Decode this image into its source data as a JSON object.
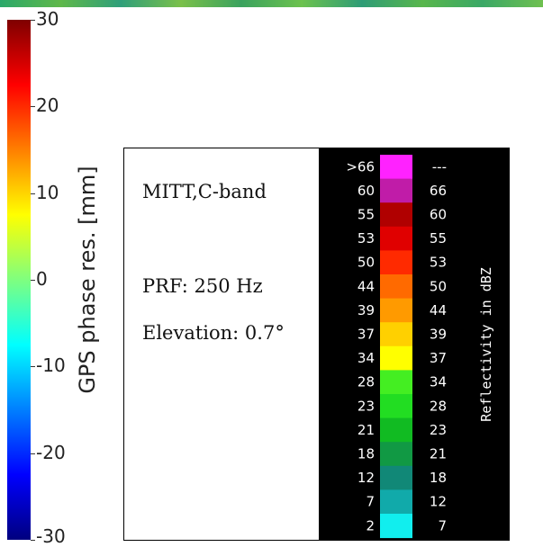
{
  "chart_data": {
    "type": "heatmap",
    "gps_colorbar": {
      "label": "GPS phase res. [mm]",
      "range": [
        -30,
        30
      ],
      "ticks": [
        30,
        20,
        10,
        0,
        -10,
        -20,
        -30
      ],
      "tick_labels": [
        "30",
        "20",
        "10",
        "0",
        "-10",
        "-20",
        "-30"
      ],
      "colormap": "jet"
    },
    "reflectivity_scale": {
      "label": "Reflectivity in dBZ",
      "bins": [
        {
          "low": ">66",
          "high": "---",
          "color": "#ff22ff"
        },
        {
          "low": "60",
          "high": "66",
          "color": "#c01ca8"
        },
        {
          "low": "55",
          "high": "60",
          "color": "#b00000"
        },
        {
          "low": "53",
          "high": "55",
          "color": "#e00000"
        },
        {
          "low": "50",
          "high": "53",
          "color": "#ff2a00"
        },
        {
          "low": "44",
          "high": "50",
          "color": "#ff6a00"
        },
        {
          "low": "39",
          "high": "44",
          "color": "#ff9a00"
        },
        {
          "low": "37",
          "high": "39",
          "color": "#ffd000"
        },
        {
          "low": "34",
          "high": "37",
          "color": "#ffff00"
        },
        {
          "low": "28",
          "high": "34",
          "color": "#44ee22"
        },
        {
          "low": "23",
          "high": "28",
          "color": "#22dd22"
        },
        {
          "low": "21",
          "high": "23",
          "color": "#11bb22"
        },
        {
          "low": "18",
          "high": "21",
          "color": "#119944"
        },
        {
          "low": "12",
          "high": "18",
          "color": "#118877"
        },
        {
          "low": "7",
          "high": "12",
          "color": "#11aaaa"
        },
        {
          "low": "2",
          "high": "7",
          "color": "#11eeee"
        }
      ]
    }
  },
  "radar_info": {
    "site_band": "MITT,C-band",
    "prf": "PRF: 250 Hz",
    "elevation": "Elevation: 0.7°"
  }
}
